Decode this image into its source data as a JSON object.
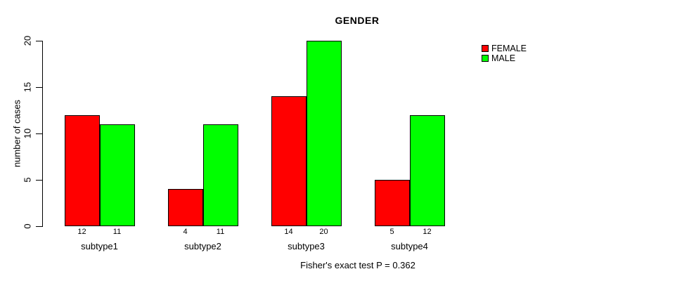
{
  "chart_data": {
    "type": "bar",
    "grouped": true,
    "title": "GENDER",
    "xlabel": "",
    "ylabel": "number of cases",
    "categories": [
      "subtype1",
      "subtype2",
      "subtype3",
      "subtype4"
    ],
    "series": [
      {
        "name": "FEMALE",
        "color": "#ff0000",
        "values": [
          12,
          4,
          14,
          5
        ]
      },
      {
        "name": "MALE",
        "color": "#00ff00",
        "values": [
          11,
          11,
          20,
          12
        ]
      }
    ],
    "bar_value_labels": [
      [
        12,
        11
      ],
      [
        4,
        11
      ],
      [
        14,
        20
      ],
      [
        5,
        12
      ]
    ],
    "yticks": [
      0,
      5,
      10,
      15,
      20
    ],
    "ylim": [
      0,
      20
    ],
    "grid": false,
    "legend_position": "top-right",
    "annotation": "Fisher's exact test P = 0.362"
  },
  "colors": {
    "female": "#ff0000",
    "male": "#00ff00",
    "axis": "#000000",
    "background": "#ffffff"
  }
}
